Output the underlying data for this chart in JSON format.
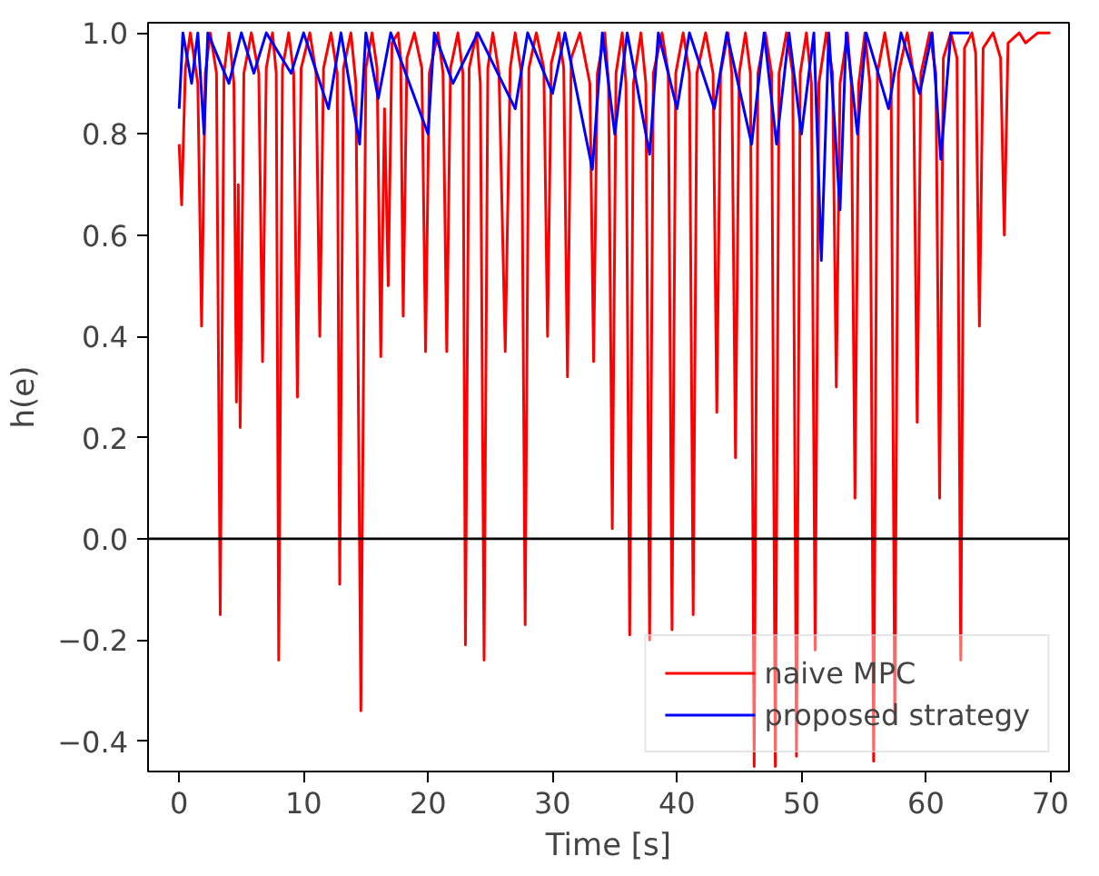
{
  "chart_data": {
    "type": "line",
    "xlabel": "Time [s]",
    "ylabel": "h(e)",
    "xlim": [
      -2.5,
      71.5
    ],
    "ylim": [
      -0.46,
      1.02
    ],
    "xticks": [
      0,
      10,
      20,
      30,
      40,
      50,
      60,
      70
    ],
    "yticks": [
      {
        "value": -0.4,
        "label": "−0.4"
      },
      {
        "value": -0.2,
        "label": "−0.2"
      },
      {
        "value": 0,
        "label": "0.0"
      },
      {
        "value": 0.2,
        "label": "0.2"
      },
      {
        "value": 0.4,
        "label": "0.4"
      },
      {
        "value": 0.6,
        "label": "0.6"
      },
      {
        "value": 0.8,
        "label": "0.8"
      },
      {
        "value": 1.0,
        "label": "1.0"
      }
    ],
    "grid": false,
    "legend": "bottom right",
    "marker": "none",
    "line_style": "solid",
    "ref_lines": [
      {
        "axis": "y",
        "value": 0,
        "color": "#000000"
      }
    ],
    "series": [
      {
        "name": "naive MPC",
        "color": "#ff0000",
        "x": [
          0,
          0.2,
          0.5,
          0.9,
          1.5,
          1.8,
          2.1,
          2.5,
          3.0,
          3.3,
          3.6,
          4.0,
          4.4,
          4.6,
          4.75,
          4.9,
          5.2,
          5.8,
          6.4,
          6.7,
          7.0,
          7.5,
          7.8,
          8.0,
          8.3,
          8.8,
          9.2,
          9.5,
          9.8,
          10.5,
          11.0,
          11.3,
          11.6,
          12.2,
          12.7,
          12.9,
          13.2,
          13.8,
          14.2,
          14.6,
          15.0,
          15.5,
          15.9,
          16.2,
          16.5,
          16.8,
          17.1,
          17.6,
          17.8,
          18.0,
          18.3,
          18.9,
          19.5,
          19.8,
          20.1,
          20.8,
          21.2,
          21.5,
          21.8,
          22.4,
          22.8,
          23.0,
          23.3,
          23.9,
          24.2,
          24.5,
          24.8,
          25.2,
          25.7,
          26.2,
          26.6,
          27.0,
          27.5,
          27.8,
          28.1,
          28.7,
          29.3,
          29.6,
          29.9,
          30.5,
          30.9,
          31.2,
          31.5,
          32.2,
          33.0,
          33.3,
          33.6,
          34.2,
          34.5,
          34.8,
          35.1,
          35.6,
          35.9,
          36.2,
          36.5,
          37.1,
          37.5,
          37.8,
          38.1,
          38.8,
          39.3,
          39.6,
          39.9,
          40.5,
          41.0,
          41.3,
          41.6,
          42.3,
          42.9,
          43.2,
          43.5,
          44.1,
          44.4,
          44.7,
          45.0,
          45.5,
          45.9,
          46.2,
          46.5,
          47.1,
          47.6,
          47.9,
          48.2,
          48.8,
          49.3,
          49.6,
          49.9,
          50.4,
          50.8,
          51.1,
          51.4,
          52.0,
          52.5,
          52.8,
          53.1,
          53.7,
          54.0,
          54.3,
          54.6,
          55.1,
          55.5,
          55.8,
          56.1,
          56.7,
          57.2,
          57.5,
          57.8,
          58.5,
          59.0,
          59.3,
          59.6,
          60.3,
          60.8,
          61.1,
          61.4,
          62.0,
          62.5,
          62.8,
          63.1,
          63.7,
          64.0,
          64.3,
          64.6,
          65.4,
          66.0,
          66.3,
          66.6,
          67.5,
          68.0,
          69.0,
          70.0
        ],
        "values": [
          0.78,
          0.66,
          0.93,
          1.0,
          0.9,
          0.42,
          0.92,
          1.0,
          0.92,
          -0.15,
          0.92,
          1.0,
          0.9,
          0.27,
          0.7,
          0.22,
          0.92,
          1.0,
          0.92,
          0.35,
          0.93,
          1.0,
          0.92,
          -0.24,
          0.93,
          1.0,
          0.92,
          0.28,
          0.93,
          1.0,
          0.92,
          0.4,
          0.93,
          1.0,
          0.92,
          -0.09,
          0.93,
          1.0,
          0.9,
          -0.34,
          0.93,
          1.0,
          0.93,
          0.36,
          0.85,
          0.5,
          0.98,
          1.0,
          0.95,
          0.44,
          0.95,
          1.0,
          0.93,
          0.37,
          0.92,
          1.0,
          0.92,
          0.37,
          0.93,
          1.0,
          0.92,
          -0.21,
          0.93,
          1.0,
          0.9,
          -0.24,
          0.93,
          1.0,
          0.92,
          0.37,
          0.93,
          1.0,
          0.92,
          -0.17,
          0.93,
          1.0,
          0.93,
          0.4,
          0.94,
          1.0,
          0.93,
          0.32,
          0.95,
          1.0,
          0.9,
          0.35,
          0.92,
          1.0,
          0.9,
          0.02,
          0.92,
          1.0,
          0.9,
          -0.19,
          0.9,
          1.0,
          0.9,
          -0.2,
          0.92,
          1.0,
          0.92,
          -0.18,
          0.92,
          1.0,
          0.92,
          -0.15,
          0.92,
          1.0,
          0.92,
          0.25,
          0.92,
          1.0,
          0.92,
          0.16,
          0.92,
          1.0,
          0.92,
          -0.45,
          0.92,
          1.0,
          0.92,
          -0.45,
          0.92,
          1.0,
          0.92,
          -0.43,
          0.92,
          1.0,
          0.9,
          -0.22,
          0.9,
          1.0,
          0.92,
          0.3,
          0.9,
          1.0,
          0.9,
          0.08,
          0.9,
          1.0,
          0.9,
          -0.44,
          0.92,
          1.0,
          0.92,
          -0.36,
          0.92,
          1.0,
          0.92,
          0.23,
          0.92,
          1.0,
          0.92,
          0.08,
          0.95,
          1.0,
          0.95,
          -0.24,
          0.97,
          1.0,
          0.96,
          0.42,
          0.97,
          1.0,
          0.95,
          0.6,
          0.98,
          1.0,
          0.98,
          1.0,
          1.0
        ]
      },
      {
        "name": "proposed strategy",
        "color": "#0000ff",
        "x": [
          0,
          0.3,
          1,
          1.5,
          2,
          2.3,
          4,
          5,
          6,
          7,
          9,
          10,
          12,
          13,
          14.5,
          15,
          16,
          17,
          20,
          20.5,
          22,
          24,
          27,
          28,
          30,
          31,
          33.2,
          34,
          35,
          36,
          37.8,
          38.5,
          40,
          41,
          43,
          44,
          46,
          47,
          48,
          49,
          50,
          51,
          51.6,
          52.2,
          53.1,
          53.6,
          54.5,
          55.2,
          57,
          58,
          59.5,
          60.5,
          61.2,
          62,
          63.5
        ],
        "values": [
          0.85,
          1.0,
          0.9,
          1.0,
          0.8,
          1.0,
          0.9,
          1.0,
          0.92,
          1.0,
          0.92,
          1.0,
          0.85,
          1.0,
          0.78,
          1.0,
          0.87,
          1.0,
          0.8,
          1.0,
          0.9,
          1.0,
          0.85,
          1.0,
          0.88,
          1.0,
          0.73,
          1.0,
          0.8,
          1.0,
          0.76,
          1.0,
          0.85,
          1.0,
          0.85,
          1.0,
          0.78,
          1.0,
          0.78,
          1.0,
          0.8,
          1.0,
          0.55,
          1.0,
          0.65,
          1.0,
          0.8,
          1.0,
          0.85,
          1.0,
          0.88,
          1.0,
          0.75,
          1.0,
          1.0
        ]
      }
    ]
  }
}
